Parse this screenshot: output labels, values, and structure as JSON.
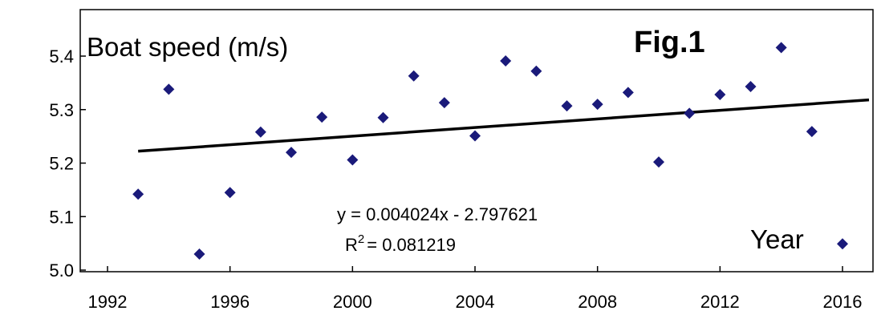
{
  "chart_data": {
    "type": "scatter",
    "title": "Fig.1",
    "ylabel": "Boat speed (m/s)",
    "xlabel": "Year",
    "xlim": [
      1992,
      2016
    ],
    "ylim": [
      5.0,
      5.45
    ],
    "xticks": [
      "1992",
      "1996",
      "2000",
      "2004",
      "2008",
      "2012",
      "2016"
    ],
    "yticks": [
      "5.0",
      "5.1",
      "5.2",
      "5.3",
      "5.4"
    ],
    "grid": false,
    "marker_color": "#1a1a7a",
    "trendline": {
      "slope": 0.004024,
      "intercept": -2.797621,
      "equation": "y = 0.004024x - 2.797621",
      "r2_prefix": "R",
      "r2_sup": "2",
      "r2_value": "= 0.081219"
    },
    "x": [
      1993,
      1994,
      1995,
      1996,
      1997,
      1998,
      1999,
      2000,
      2001,
      2002,
      2003,
      2004,
      2005,
      2006,
      2007,
      2008,
      2009,
      2010,
      2011,
      2012,
      2013,
      2014,
      2015,
      2016
    ],
    "y": [
      5.142,
      5.338,
      5.03,
      5.145,
      5.258,
      5.22,
      5.286,
      5.206,
      5.285,
      5.363,
      5.313,
      5.251,
      5.391,
      5.372,
      5.307,
      5.31,
      5.332,
      5.202,
      5.293,
      5.328,
      5.343,
      5.416,
      5.259,
      5.049
    ]
  }
}
